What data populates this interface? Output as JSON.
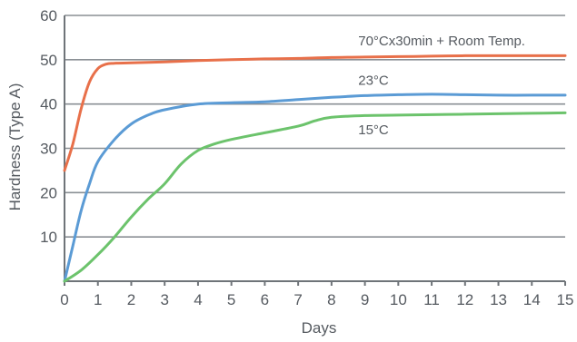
{
  "chart_data": {
    "type": "line",
    "xlabel": "Days",
    "ylabel": "Hardness (Type A)",
    "xlim": [
      0,
      15
    ],
    "ylim": [
      0,
      60
    ],
    "x_ticks": [
      0,
      1,
      2,
      3,
      4,
      5,
      6,
      7,
      8,
      9,
      10,
      11,
      12,
      13,
      14,
      15
    ],
    "y_ticks": [
      10,
      20,
      30,
      40,
      50,
      60
    ],
    "grid": "horizontal",
    "legend": "inline labels",
    "series": [
      {
        "name": "70°Cx30min + Room Temp.",
        "color": "#e8704a",
        "x": [
          0,
          0.25,
          0.5,
          0.75,
          1,
          1.25,
          1.5,
          2,
          3,
          4,
          5,
          6,
          7,
          8,
          9,
          10,
          11,
          12,
          13,
          14,
          15
        ],
        "y": [
          25,
          31,
          39,
          45,
          48,
          49,
          49.2,
          49.3,
          49.5,
          49.8,
          50,
          50.2,
          50.3,
          50.5,
          50.6,
          50.7,
          50.8,
          50.9,
          50.9,
          50.9,
          50.9
        ]
      },
      {
        "name": "23°C",
        "color": "#5b9bd5",
        "x": [
          0,
          0.25,
          0.5,
          0.75,
          1,
          1.5,
          2,
          2.5,
          3,
          4,
          5,
          6,
          7,
          8,
          9,
          10,
          11,
          12,
          13,
          14,
          15
        ],
        "y": [
          0,
          8,
          16,
          22,
          27,
          32,
          35.5,
          37.5,
          38.7,
          40,
          40.3,
          40.5,
          41,
          41.5,
          41.9,
          42.1,
          42.2,
          42.1,
          42,
          42,
          42
        ]
      },
      {
        "name": "15°C",
        "color": "#6cc36c",
        "x": [
          0,
          0.5,
          1,
          1.5,
          2,
          2.5,
          3,
          3.5,
          4,
          4.5,
          5,
          6,
          7,
          7.5,
          8,
          9,
          10,
          11,
          12,
          13,
          14,
          15
        ],
        "y": [
          0,
          2.5,
          6,
          10,
          14.5,
          18.5,
          22,
          26.5,
          29.5,
          31,
          32,
          33.5,
          35,
          36.2,
          37,
          37.4,
          37.5,
          37.6,
          37.7,
          37.8,
          37.9,
          38
        ]
      }
    ],
    "labels": [
      {
        "text": "70°Cx30min + Room Temp.",
        "at": [
          8.8,
          53.2
        ]
      },
      {
        "text": "23°C",
        "at": [
          8.8,
          44.3
        ]
      },
      {
        "text": "15°C",
        "at": [
          8.8,
          33.2
        ]
      }
    ]
  }
}
